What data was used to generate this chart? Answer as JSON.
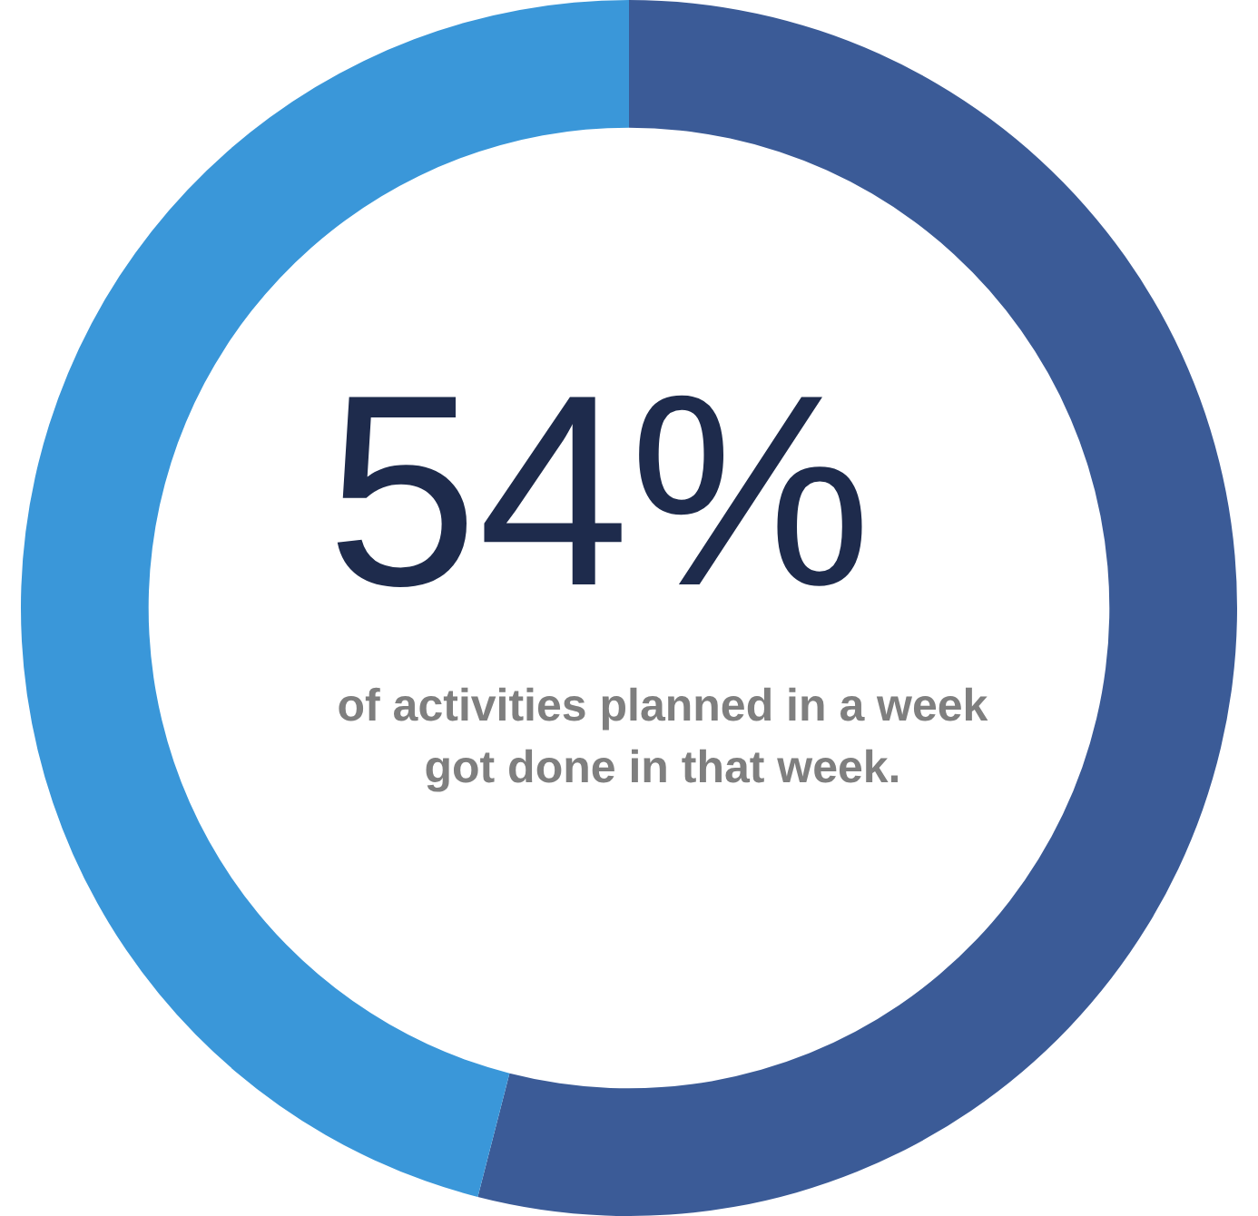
{
  "chart_data": {
    "type": "donut",
    "categories": [
      null,
      null
    ],
    "values": [
      54,
      46
    ],
    "colors": [
      "#3b5b97",
      "#3a97d9"
    ],
    "value_labels": [
      "54%",
      null
    ],
    "annotations": [
      "of activities planned in a week got done in that week."
    ]
  }
}
